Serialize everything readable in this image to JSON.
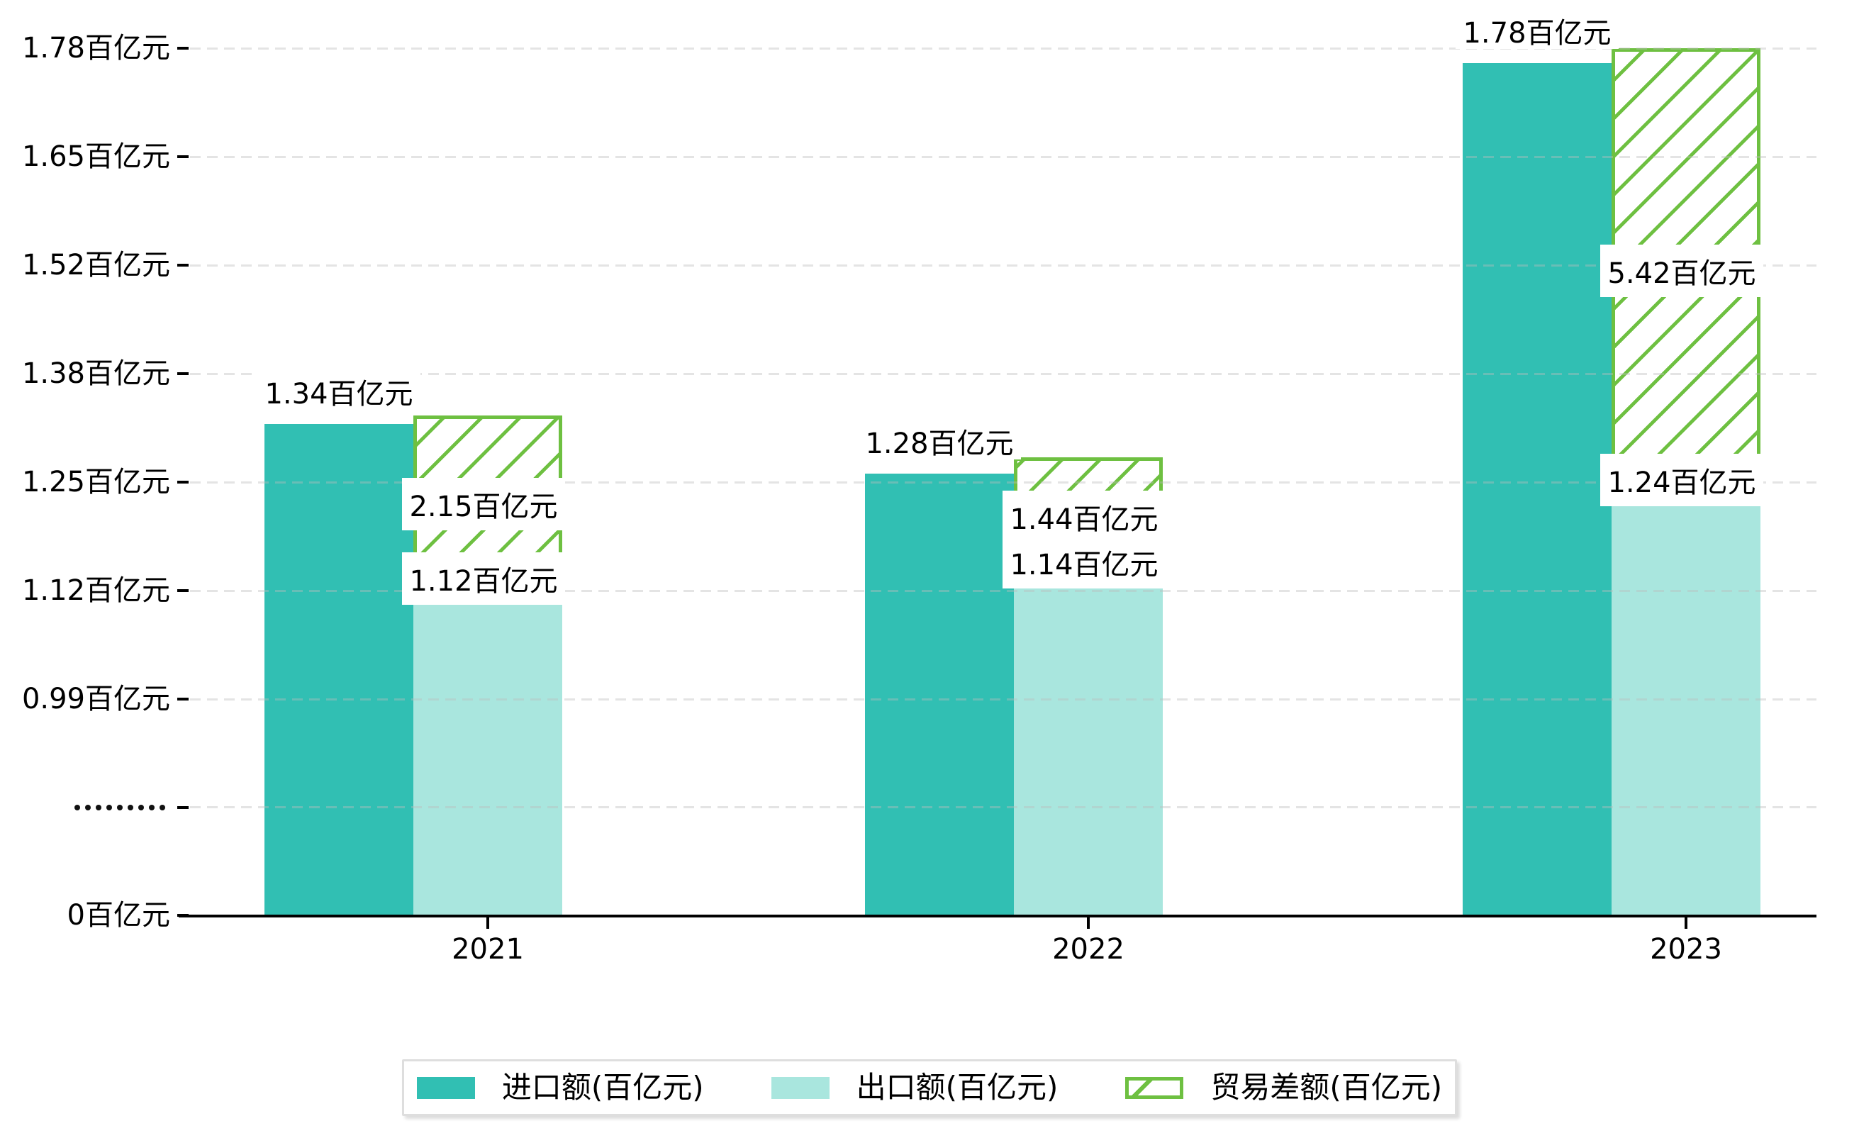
{
  "colors": {
    "import": "#31bfb3",
    "export": "#a9e6de",
    "diff_green": "#6ec041",
    "axis": "#000000",
    "grid_dash": "#e6e6e6",
    "label_text": "#000000",
    "legend_border": "#dedede"
  },
  "unit": "百亿元",
  "chart_data": {
    "type": "bar",
    "title": "",
    "categories": [
      "2021",
      "2022",
      "2023"
    ],
    "series": [
      {
        "name": "进口额(百亿元)",
        "values": [
          1.34,
          1.28,
          1.78
        ],
        "labels": [
          "1.34百亿元",
          "1.28百亿元",
          "1.78百亿元"
        ],
        "color": "#31bfb3",
        "style": "solid"
      },
      {
        "name": "出口额(百亿元)",
        "values": [
          1.12,
          1.14,
          1.24
        ],
        "labels": [
          "1.12百亿元",
          "1.14百亿元",
          "1.24百亿元"
        ],
        "color": "#a9e6de",
        "style": "solid"
      },
      {
        "name": "贸易差额(百亿元)",
        "values": [
          2.15,
          1.44,
          5.42
        ],
        "labels": [
          "2.15百亿元",
          "1.44百亿元",
          "5.42百亿元"
        ],
        "color": "#6ec041",
        "style": "hatched-overlay",
        "plot_scale": 0.1,
        "note": "drawn as hatched span from export top to export+value/10, overlapping export bar slot"
      }
    ],
    "y_axis": {
      "unit": "百亿元",
      "axis_break": true,
      "ticks": [
        {
          "label": "1.78百亿元",
          "value": 1.782
        },
        {
          "label": "1.65百亿元",
          "value": 1.65
        },
        {
          "label": "1.52百亿元",
          "value": 1.518
        },
        {
          "label": "1.38百亿元",
          "value": 1.386
        },
        {
          "label": "1.25百亿元",
          "value": 1.254
        },
        {
          "label": "1.12百亿元",
          "value": 1.122
        },
        {
          "label": "0.99百亿元",
          "value": 0.99
        },
        {
          "label": "",
          "value": null,
          "break": true
        },
        {
          "label": "0百亿元",
          "value": 0
        }
      ]
    },
    "grid": "dashed horizontal",
    "legend_position": "bottom center"
  }
}
